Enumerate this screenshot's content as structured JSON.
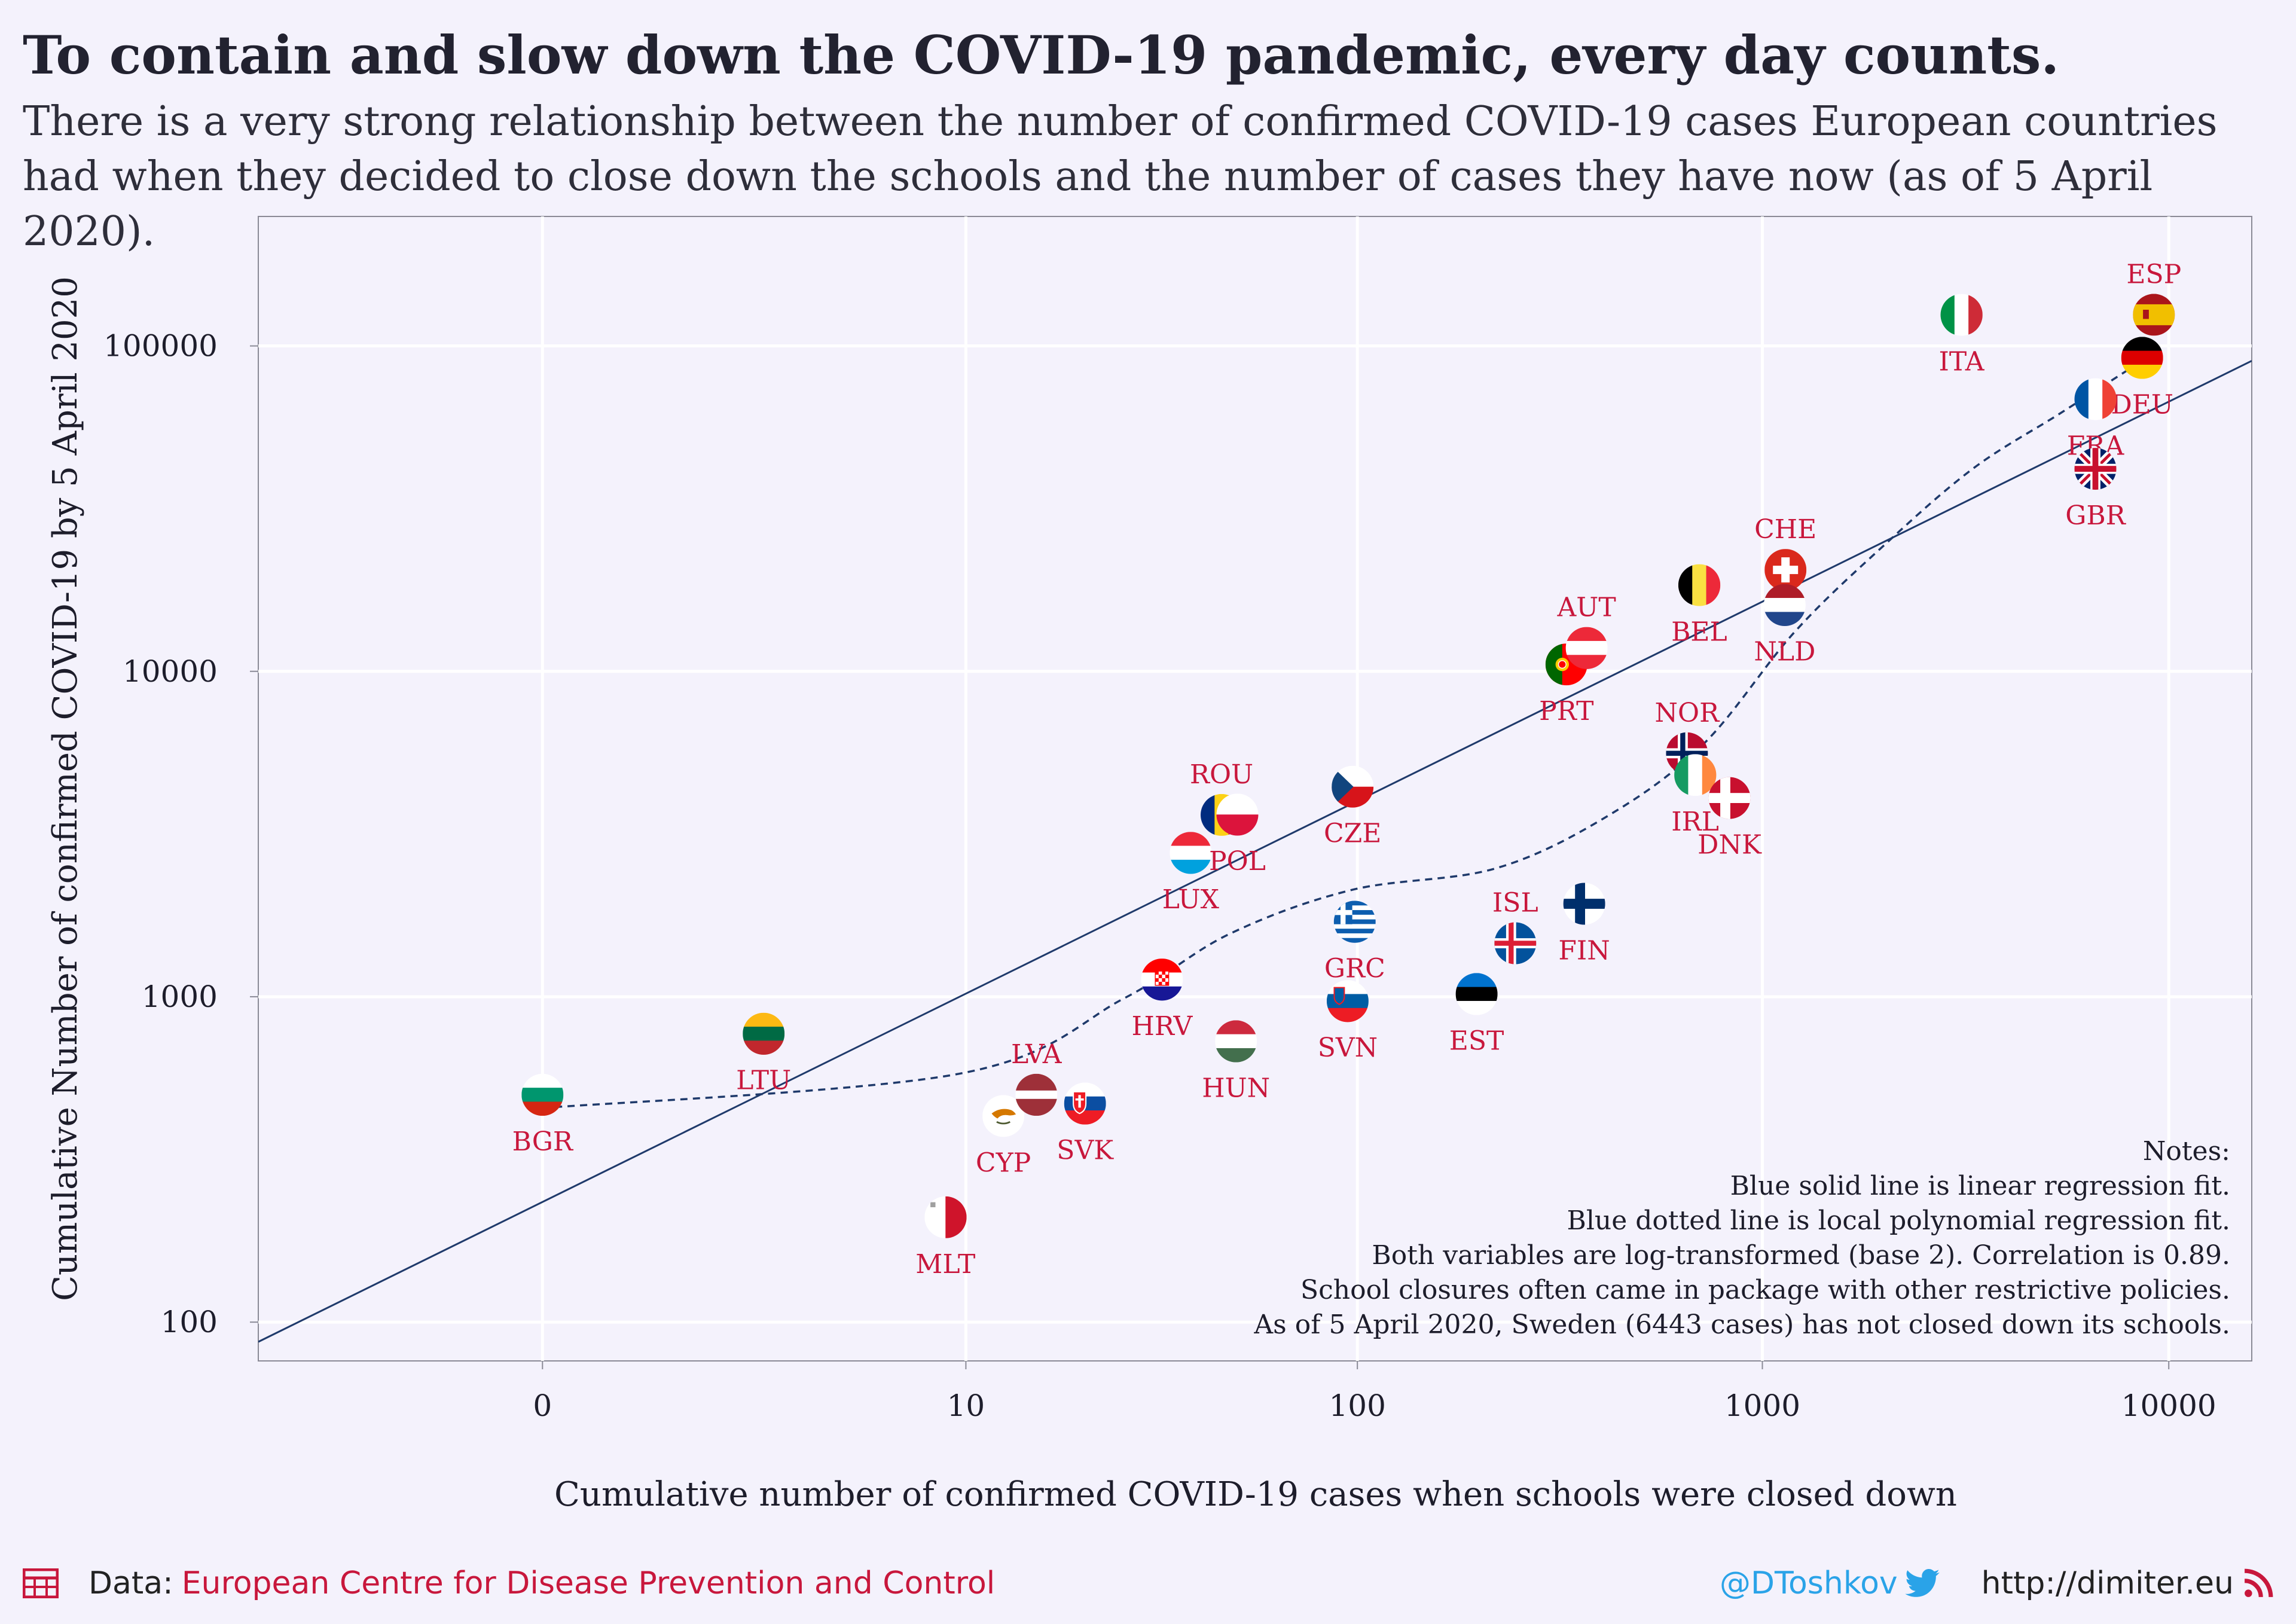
{
  "title": "To contain and slow down the COVID-19 pandemic, every day counts.",
  "subtitle": "There is a very strong relationship between the number of confirmed COVID-19 cases European countries had when they decided to close down the schools and the number of cases they have now (as of 5 April 2020).",
  "notes": [
    "Notes:",
    "Blue solid line is linear regression fit.",
    "Blue dotted line is local polynomial regression fit.",
    "Both variables are log-transformed (base 2). Correlation is 0.89.",
    "School closures often came in package with other restrictive policies.",
    "As of 5 April 2020, Sweden (6443 cases) has not closed down its schools."
  ],
  "footer": {
    "data_label": "Data:",
    "source": "European Centre for Disease Prevention and Control",
    "handle": "@DToshkov",
    "website": "http://dimiter.eu"
  },
  "colors": {
    "background": "#f4f2fc",
    "label": "#c8173c",
    "line": "#1f3a6b",
    "twitter": "#2aa3e8"
  },
  "chart_data": {
    "type": "scatter",
    "xlabel": "Cumulative number of confirmed COVID-19 cases when schools were closed down",
    "ylabel": "Cumulative Number of confirmed COVID-19 by 5 April 2020",
    "x_scale": "log (x+1)",
    "y_scale": "log",
    "x_ticks": [
      {
        "value": 0,
        "label": "0"
      },
      {
        "value": 10,
        "label": "10"
      },
      {
        "value": 100,
        "label": "100"
      },
      {
        "value": 1000,
        "label": "1000"
      },
      {
        "value": 10000,
        "label": "10000"
      }
    ],
    "y_ticks": [
      {
        "value": 100,
        "label": "100"
      },
      {
        "value": 1000,
        "label": "1000"
      },
      {
        "value": 10000,
        "label": "10000"
      },
      {
        "value": 100000,
        "label": "100000"
      }
    ],
    "xlim": [
      -0.8,
      16000
    ],
    "ylim": [
      76,
      250000
    ],
    "grid": true,
    "points": [
      {
        "code": "BGR",
        "x": 0,
        "y": 500,
        "label_pos": "below",
        "flag": "bgr"
      },
      {
        "code": "LTU",
        "x": 2.5,
        "y": 770,
        "label_pos": "below",
        "flag": "ltu"
      },
      {
        "code": "MLT",
        "x": 8.8,
        "y": 210,
        "label_pos": "below",
        "flag": "mlt"
      },
      {
        "code": "CYP",
        "x": 12.6,
        "y": 430,
        "label_pos": "below",
        "flag": "cyp"
      },
      {
        "code": "LVA",
        "x": 15.4,
        "y": 500,
        "label_pos": "above",
        "flag": "lva"
      },
      {
        "code": "SVK",
        "x": 20.6,
        "y": 470,
        "label_pos": "below",
        "flag": "svk"
      },
      {
        "code": "HRV",
        "x": 32.4,
        "y": 1130,
        "label_pos": "below",
        "flag": "hrv"
      },
      {
        "code": "HUN",
        "x": 49.8,
        "y": 730,
        "label_pos": "below",
        "flag": "hun"
      },
      {
        "code": "LUX",
        "x": 38.3,
        "y": 2770,
        "label_pos": "below",
        "flag": "lux"
      },
      {
        "code": "ROU",
        "x": 45.8,
        "y": 3620,
        "label_pos": "above",
        "flag": "rou"
      },
      {
        "code": "POL",
        "x": 50.2,
        "y": 3630,
        "label_pos": "below",
        "flag": "pol"
      },
      {
        "code": "CZE",
        "x": 97.3,
        "y": 4420,
        "label_pos": "below",
        "flag": "cze"
      },
      {
        "code": "GRC",
        "x": 98.5,
        "y": 1700,
        "label_pos": "below",
        "flag": "grc"
      },
      {
        "code": "SVN",
        "x": 94.6,
        "y": 970,
        "label_pos": "below",
        "flag": "svn"
      },
      {
        "code": "EST",
        "x": 197.4,
        "y": 1020,
        "label_pos": "below",
        "flag": "est"
      },
      {
        "code": "ISL",
        "x": 246,
        "y": 1460,
        "label_pos": "above",
        "flag": "isl"
      },
      {
        "code": "FIN",
        "x": 364,
        "y": 1930,
        "label_pos": "below",
        "flag": "fin"
      },
      {
        "code": "PRT",
        "x": 329,
        "y": 10500,
        "label_pos": "below",
        "flag": "prt"
      },
      {
        "code": "AUT",
        "x": 369,
        "y": 11800,
        "label_pos": "above",
        "flag": "aut"
      },
      {
        "code": "NOR",
        "x": 652,
        "y": 5600,
        "label_pos": "above",
        "flag": "nor"
      },
      {
        "code": "IRL",
        "x": 683,
        "y": 4800,
        "label_pos": "below",
        "flag": "irl"
      },
      {
        "code": "DNK",
        "x": 830,
        "y": 4080,
        "label_pos": "below",
        "flag": "dnk"
      },
      {
        "code": "BEL",
        "x": 699,
        "y": 18400,
        "label_pos": "below",
        "flag": "bel"
      },
      {
        "code": "CHE",
        "x": 1140,
        "y": 20500,
        "label_pos": "above",
        "flag": "che"
      },
      {
        "code": "NLD",
        "x": 1135,
        "y": 16000,
        "label_pos": "below",
        "flag": "nld"
      },
      {
        "code": "ITA",
        "x": 3090,
        "y": 124600,
        "label_pos": "below",
        "flag": "ita"
      },
      {
        "code": "ESP",
        "x": 9190,
        "y": 124700,
        "label_pos": "above",
        "flag": "esp"
      },
      {
        "code": "DEU",
        "x": 8600,
        "y": 92000,
        "label_pos": "below",
        "flag": "deu"
      },
      {
        "code": "FRA",
        "x": 6600,
        "y": 68600,
        "label_pos": "below",
        "flag": "fra"
      },
      {
        "code": "GBR",
        "x": 6600,
        "y": 41900,
        "label_pos": "below",
        "flag": "gbr"
      }
    ],
    "regression_line": [
      [
        -0.8,
        87
      ],
      [
        16000,
        90000
      ]
    ],
    "loess_line": [
      [
        0,
        455
      ],
      [
        9.6,
        580
      ],
      [
        26,
        990
      ],
      [
        48,
        1560
      ],
      [
        97,
        2130
      ],
      [
        220,
        2480
      ],
      [
        420,
        3620
      ],
      [
        720,
        6020
      ],
      [
        1200,
        13200
      ],
      [
        2000,
        24500
      ],
      [
        3300,
        42000
      ],
      [
        5400,
        62000
      ],
      [
        8600,
        90000
      ]
    ]
  }
}
